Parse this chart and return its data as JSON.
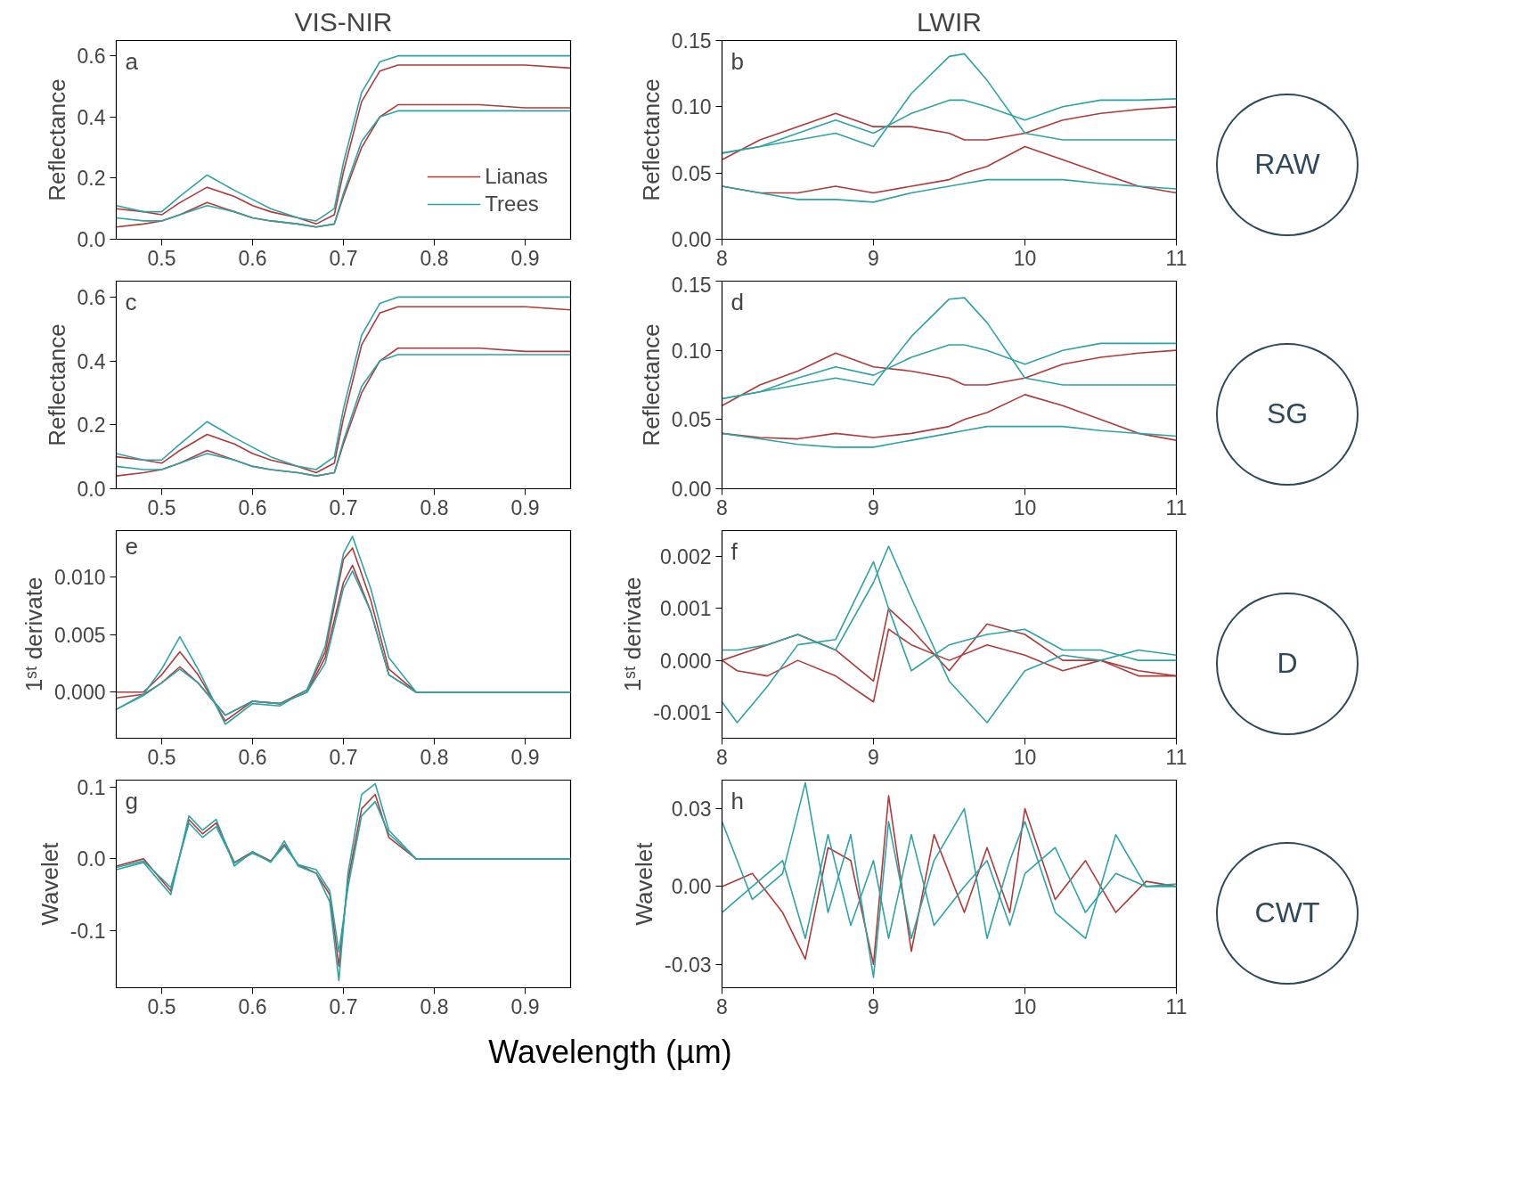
{
  "chart_data": [
    {
      "type": "line",
      "title": "VIS-NIR",
      "ylabel": "Reflectance",
      "annotations": [
        "a"
      ],
      "xlim": [
        0.45,
        0.95
      ],
      "xticks": [
        0.5,
        0.6,
        0.7,
        0.8,
        0.9
      ],
      "ylim": [
        0,
        0.65
      ],
      "yticks": [
        {
          "value": 0,
          "label": "0.0"
        },
        0.2,
        0.4,
        0.6
      ],
      "legend": "bottom right",
      "grid": false,
      "x": [
        0.45,
        0.48,
        0.5,
        0.52,
        0.55,
        0.58,
        0.6,
        0.62,
        0.65,
        0.67,
        0.69,
        0.7,
        0.72,
        0.74,
        0.76,
        0.8,
        0.85,
        0.9,
        0.95
      ],
      "series": [
        {
          "name": "Lianas",
          "color": "#b03a3a",
          "values": [
            0.1,
            0.09,
            0.08,
            0.12,
            0.17,
            0.14,
            0.11,
            0.09,
            0.07,
            0.05,
            0.08,
            0.22,
            0.45,
            0.55,
            0.57,
            0.57,
            0.57,
            0.57,
            0.56
          ]
        },
        {
          "color": "#b03a3a",
          "values": [
            0.04,
            0.05,
            0.06,
            0.08,
            0.12,
            0.09,
            0.07,
            0.06,
            0.05,
            0.04,
            0.05,
            0.14,
            0.3,
            0.4,
            0.44,
            0.44,
            0.44,
            0.43,
            0.43
          ]
        },
        {
          "name": "Trees",
          "color": "#2fa3a3",
          "values": [
            0.11,
            0.09,
            0.09,
            0.14,
            0.21,
            0.16,
            0.13,
            0.1,
            0.07,
            0.06,
            0.1,
            0.25,
            0.48,
            0.58,
            0.6,
            0.6,
            0.6,
            0.6,
            0.6
          ]
        },
        {
          "color": "#2fa3a3",
          "values": [
            0.07,
            0.06,
            0.06,
            0.08,
            0.11,
            0.09,
            0.07,
            0.06,
            0.05,
            0.04,
            0.05,
            0.15,
            0.32,
            0.4,
            0.42,
            0.42,
            0.42,
            0.42,
            0.42
          ]
        }
      ]
    },
    {
      "type": "line",
      "title": "LWIR",
      "ylabel": "Reflectance",
      "annotations": [
        "b",
        "RAW"
      ],
      "xlim": [
        8,
        11
      ],
      "xticks": [
        8,
        9,
        10,
        11
      ],
      "ylim": [
        0,
        0.15
      ],
      "yticks": [
        {
          "value": 0,
          "label": "0.00"
        },
        0.05,
        {
          "value": 0.1,
          "label": "0.10"
        },
        0.15
      ],
      "grid": false,
      "x": [
        8,
        8.25,
        8.5,
        8.75,
        9,
        9.25,
        9.5,
        9.6,
        9.75,
        10,
        10.25,
        10.5,
        10.75,
        11
      ],
      "series": [
        {
          "color": "#b03a3a",
          "values": [
            0.06,
            0.075,
            0.085,
            0.095,
            0.085,
            0.085,
            0.08,
            0.075,
            0.075,
            0.08,
            0.09,
            0.095,
            0.098,
            0.1
          ]
        },
        {
          "color": "#b03a3a",
          "values": [
            0.04,
            0.035,
            0.035,
            0.04,
            0.035,
            0.04,
            0.045,
            0.05,
            0.055,
            0.07,
            0.06,
            0.05,
            0.04,
            0.035
          ]
        },
        {
          "color": "#2fa3a3",
          "values": [
            0.065,
            0.07,
            0.075,
            0.08,
            0.07,
            0.11,
            0.138,
            0.14,
            0.12,
            0.08,
            0.075,
            0.075,
            0.075,
            0.075
          ]
        },
        {
          "color": "#2fa3a3",
          "values": [
            0.065,
            0.07,
            0.08,
            0.09,
            0.08,
            0.095,
            0.105,
            0.105,
            0.1,
            0.09,
            0.1,
            0.105,
            0.105,
            0.106
          ]
        },
        {
          "color": "#2fa3a3",
          "values": [
            0.04,
            0.035,
            0.03,
            0.03,
            0.028,
            0.035,
            0.04,
            0.042,
            0.045,
            0.045,
            0.045,
            0.042,
            0.04,
            0.038
          ]
        }
      ]
    },
    {
      "type": "line",
      "ylabel": "Reflectance",
      "annotations": [
        "c"
      ],
      "xlim": [
        0.45,
        0.95
      ],
      "xticks": [
        0.5,
        0.6,
        0.7,
        0.8,
        0.9
      ],
      "ylim": [
        0,
        0.65
      ],
      "yticks": [
        {
          "value": 0,
          "label": "0.0"
        },
        0.2,
        0.4,
        0.6
      ],
      "grid": false,
      "x": [
        0.45,
        0.48,
        0.5,
        0.52,
        0.55,
        0.58,
        0.6,
        0.62,
        0.65,
        0.67,
        0.69,
        0.7,
        0.72,
        0.74,
        0.76,
        0.8,
        0.85,
        0.9,
        0.95
      ],
      "series": [
        {
          "color": "#b03a3a",
          "values": [
            0.1,
            0.09,
            0.08,
            0.12,
            0.17,
            0.14,
            0.11,
            0.09,
            0.07,
            0.05,
            0.08,
            0.22,
            0.45,
            0.55,
            0.57,
            0.57,
            0.57,
            0.57,
            0.56
          ]
        },
        {
          "color": "#b03a3a",
          "values": [
            0.04,
            0.05,
            0.06,
            0.08,
            0.12,
            0.09,
            0.07,
            0.06,
            0.05,
            0.04,
            0.05,
            0.14,
            0.3,
            0.4,
            0.44,
            0.44,
            0.44,
            0.43,
            0.43
          ]
        },
        {
          "color": "#2fa3a3",
          "values": [
            0.11,
            0.09,
            0.09,
            0.14,
            0.21,
            0.16,
            0.13,
            0.1,
            0.07,
            0.06,
            0.1,
            0.25,
            0.48,
            0.58,
            0.6,
            0.6,
            0.6,
            0.6,
            0.6
          ]
        },
        {
          "color": "#2fa3a3",
          "values": [
            0.07,
            0.06,
            0.06,
            0.08,
            0.11,
            0.09,
            0.07,
            0.06,
            0.05,
            0.04,
            0.05,
            0.15,
            0.32,
            0.4,
            0.42,
            0.42,
            0.42,
            0.42,
            0.42
          ]
        }
      ]
    },
    {
      "type": "line",
      "ylabel": "Reflectance",
      "annotations": [
        "d",
        "SG"
      ],
      "xlim": [
        8,
        11
      ],
      "xticks": [
        8,
        9,
        10,
        11
      ],
      "ylim": [
        0,
        0.15
      ],
      "yticks": [
        {
          "value": 0,
          "label": "0.00"
        },
        0.05,
        {
          "value": 0.1,
          "label": "0.10"
        },
        0.15
      ],
      "grid": false,
      "x": [
        8,
        8.25,
        8.5,
        8.75,
        9,
        9.25,
        9.5,
        9.6,
        9.75,
        10,
        10.25,
        10.5,
        10.75,
        11
      ],
      "series": [
        {
          "color": "#b03a3a",
          "values": [
            0.06,
            0.075,
            0.085,
            0.098,
            0.088,
            0.085,
            0.08,
            0.075,
            0.075,
            0.08,
            0.09,
            0.095,
            0.098,
            0.1
          ]
        },
        {
          "color": "#b03a3a",
          "values": [
            0.04,
            0.037,
            0.036,
            0.04,
            0.037,
            0.04,
            0.045,
            0.05,
            0.055,
            0.068,
            0.06,
            0.05,
            0.04,
            0.035
          ]
        },
        {
          "color": "#2fa3a3",
          "values": [
            0.065,
            0.07,
            0.075,
            0.08,
            0.075,
            0.11,
            0.137,
            0.138,
            0.12,
            0.08,
            0.075,
            0.075,
            0.075,
            0.075
          ]
        },
        {
          "color": "#2fa3a3",
          "values": [
            0.065,
            0.07,
            0.08,
            0.088,
            0.082,
            0.095,
            0.104,
            0.104,
            0.1,
            0.09,
            0.1,
            0.105,
            0.105,
            0.105
          ]
        },
        {
          "color": "#2fa3a3",
          "values": [
            0.04,
            0.036,
            0.032,
            0.03,
            0.03,
            0.035,
            0.04,
            0.042,
            0.045,
            0.045,
            0.045,
            0.042,
            0.04,
            0.038
          ]
        }
      ]
    },
    {
      "type": "line",
      "ylabel": "1ˢᵗ derivate",
      "annotations": [
        "e"
      ],
      "xlim": [
        0.45,
        0.95
      ],
      "xticks": [
        0.5,
        0.6,
        0.7,
        0.8,
        0.9
      ],
      "ylim": [
        -0.004,
        0.014
      ],
      "yticks": [
        {
          "value": 0,
          "label": "0.000"
        },
        0.005,
        {
          "value": 0.01,
          "label": "0.010"
        }
      ],
      "grid": false,
      "x": [
        0.45,
        0.48,
        0.5,
        0.52,
        0.54,
        0.57,
        0.6,
        0.63,
        0.66,
        0.68,
        0.7,
        0.71,
        0.73,
        0.75,
        0.78,
        0.85,
        0.95
      ],
      "series": [
        {
          "color": "#b03a3a",
          "values": [
            0.0,
            0.0,
            0.0015,
            0.0035,
            0.0015,
            -0.0025,
            -0.0008,
            -0.001,
            0.0002,
            0.0035,
            0.0115,
            0.0125,
            0.008,
            0.002,
            0.0,
            0.0,
            0.0
          ]
        },
        {
          "color": "#b03a3a",
          "values": [
            -0.0005,
            -0.0002,
            0.0008,
            0.0022,
            0.0008,
            -0.002,
            -0.0008,
            -0.001,
            0.0,
            0.003,
            0.0095,
            0.011,
            0.007,
            0.0015,
            0.0,
            0.0,
            0.0
          ]
        },
        {
          "color": "#2fa3a3",
          "values": [
            -0.0015,
            -0.0002,
            0.002,
            0.0048,
            0.002,
            -0.0028,
            -0.001,
            -0.0012,
            0.0002,
            0.004,
            0.012,
            0.0135,
            0.009,
            0.003,
            0.0,
            0.0,
            0.0
          ]
        },
        {
          "color": "#2fa3a3",
          "values": [
            -0.0015,
            -0.0003,
            0.0008,
            0.002,
            0.0008,
            -0.002,
            -0.0008,
            -0.001,
            0.0,
            0.0025,
            0.009,
            0.0105,
            0.007,
            0.0015,
            0.0,
            0.0,
            0.0
          ]
        }
      ]
    },
    {
      "type": "line",
      "ylabel": "1ˢᵗ derivate",
      "annotations": [
        "f",
        "D"
      ],
      "xlim": [
        8,
        11
      ],
      "xticks": [
        8,
        9,
        10,
        11
      ],
      "ylim": [
        -0.0015,
        0.0025
      ],
      "yticks": [
        -0.001,
        {
          "value": 0,
          "label": "0.000"
        },
        0.001,
        0.002
      ],
      "grid": false,
      "x": [
        8,
        8.1,
        8.3,
        8.5,
        8.75,
        9,
        9.1,
        9.25,
        9.5,
        9.75,
        10,
        10.25,
        10.5,
        10.75,
        11
      ],
      "series": [
        {
          "color": "#b03a3a",
          "values": [
            0.0,
            0.0001,
            0.0003,
            0.0005,
            0.0002,
            -0.0004,
            0.001,
            0.0006,
            -0.0002,
            0.0007,
            0.0005,
            0.0,
            0.0,
            -0.0002,
            -0.0003
          ]
        },
        {
          "color": "#b03a3a",
          "values": [
            0.0,
            -0.0002,
            -0.0003,
            0.0,
            -0.0003,
            -0.0008,
            0.0006,
            0.0003,
            0.0,
            0.0003,
            0.0001,
            -0.0002,
            0.0,
            -0.0003,
            -0.0003
          ]
        },
        {
          "color": "#2fa3a3",
          "values": [
            0.0002,
            0.0002,
            0.0003,
            0.0005,
            0.0002,
            0.0015,
            0.0022,
            0.0012,
            -0.0004,
            -0.0012,
            -0.0002,
            0.0001,
            0.0,
            0.0002,
            0.0001
          ]
        },
        {
          "color": "#2fa3a3",
          "values": [
            -0.0008,
            -0.0012,
            -0.0005,
            0.0003,
            0.0004,
            0.0019,
            0.001,
            -0.0002,
            0.0003,
            0.0005,
            0.0006,
            0.0002,
            0.0002,
            0.0,
            0.0
          ]
        }
      ]
    },
    {
      "type": "line",
      "ylabel": "Wavelet",
      "xlabel": "Wavelength (µm)",
      "annotations": [
        "g"
      ],
      "xlim": [
        0.45,
        0.95
      ],
      "xticks": [
        0.5,
        0.6,
        0.7,
        0.8,
        0.9
      ],
      "ylim": [
        -0.18,
        0.11
      ],
      "yticks": [
        -0.1,
        {
          "value": 0,
          "label": "0.0"
        },
        0.1
      ],
      "grid": false,
      "x": [
        0.45,
        0.48,
        0.51,
        0.53,
        0.545,
        0.56,
        0.58,
        0.6,
        0.62,
        0.635,
        0.65,
        0.67,
        0.685,
        0.695,
        0.705,
        0.72,
        0.735,
        0.75,
        0.78,
        0.85,
        0.95
      ],
      "series": [
        {
          "color": "#b03a3a",
          "values": [
            -0.01,
            0.0,
            -0.045,
            0.055,
            0.035,
            0.05,
            -0.005,
            0.01,
            -0.003,
            0.02,
            -0.008,
            -0.02,
            -0.05,
            -0.15,
            -0.03,
            0.07,
            0.09,
            0.03,
            0.0,
            0.0,
            0.0
          ]
        },
        {
          "color": "#2fa3a3",
          "values": [
            -0.015,
            -0.005,
            -0.05,
            0.06,
            0.04,
            0.055,
            -0.01,
            0.01,
            -0.005,
            0.025,
            -0.01,
            -0.02,
            -0.06,
            -0.17,
            -0.02,
            0.09,
            0.105,
            0.04,
            0.0,
            0.0,
            0.0
          ]
        },
        {
          "color": "#2fa3a3",
          "values": [
            -0.012,
            -0.003,
            -0.04,
            0.05,
            0.03,
            0.045,
            -0.006,
            0.008,
            -0.004,
            0.018,
            -0.008,
            -0.015,
            -0.045,
            -0.13,
            -0.04,
            0.06,
            0.08,
            0.035,
            0.0,
            0.0,
            0.0
          ]
        }
      ]
    },
    {
      "type": "line",
      "ylabel": "Wavelet",
      "annotations": [
        "h",
        "CWT"
      ],
      "xlim": [
        8,
        11
      ],
      "xticks": [
        8,
        9,
        10,
        11
      ],
      "ylim": [
        -0.039,
        0.041
      ],
      "yticks": [
        -0.03,
        {
          "value": 0,
          "label": "0.00"
        },
        0.03
      ],
      "grid": false,
      "x": [
        8,
        8.2,
        8.4,
        8.55,
        8.7,
        8.85,
        9,
        9.1,
        9.25,
        9.4,
        9.6,
        9.75,
        9.9,
        10.0,
        10.2,
        10.4,
        10.6,
        10.8,
        11
      ],
      "series": [
        {
          "color": "#b03a3a",
          "values": [
            0.0,
            0.005,
            -0.01,
            -0.028,
            0.015,
            0.01,
            -0.03,
            0.035,
            -0.025,
            0.02,
            -0.01,
            0.015,
            -0.01,
            0.03,
            -0.005,
            0.01,
            -0.01,
            0.002,
            0.0
          ]
        },
        {
          "color": "#2fa3a3",
          "values": [
            0.025,
            -0.005,
            0.005,
            0.04,
            -0.01,
            0.02,
            -0.035,
            0.025,
            -0.02,
            0.01,
            0.03,
            -0.02,
            0.01,
            0.025,
            -0.01,
            -0.02,
            0.02,
            0.0,
            0.0
          ]
        },
        {
          "color": "#2fa3a3",
          "values": [
            -0.01,
            0.0,
            0.01,
            -0.02,
            0.02,
            -0.015,
            0.01,
            -0.02,
            0.02,
            -0.015,
            0.0,
            0.01,
            -0.015,
            0.005,
            0.015,
            -0.01,
            0.005,
            0.0,
            0.001
          ]
        }
      ]
    }
  ]
}
